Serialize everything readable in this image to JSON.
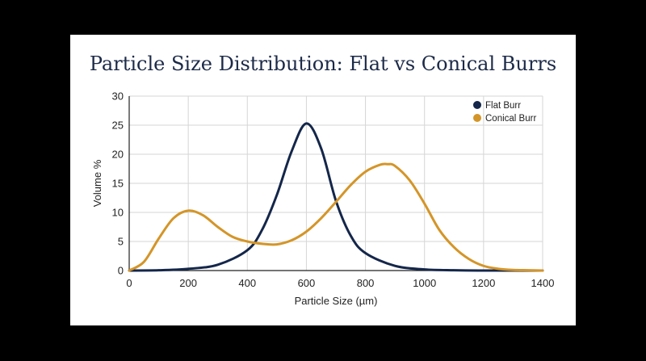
{
  "chart_data": {
    "type": "line",
    "title": "Particle Size Distribution: Flat vs Conical Burrs",
    "xlabel": "Particle Size (µm)",
    "ylabel": "Volume %",
    "xlim": [
      0,
      1400
    ],
    "ylim": [
      0,
      30
    ],
    "xticks": [
      0,
      200,
      400,
      600,
      800,
      1000,
      1200,
      1400
    ],
    "yticks": [
      0,
      5,
      10,
      15,
      20,
      25,
      30
    ],
    "grid": true,
    "legend_position": "top-right",
    "series": [
      {
        "name": "Flat Burr",
        "color": "#14264a",
        "x": [
          0,
          100,
          200,
          300,
          400,
          450,
          500,
          550,
          600,
          650,
          700,
          750,
          800,
          900,
          1000,
          1100,
          1200,
          1300,
          1400
        ],
        "y": [
          0,
          0.05,
          0.3,
          1.0,
          3.5,
          7.0,
          13.0,
          20.5,
          25.3,
          21.0,
          12.0,
          6.0,
          3.0,
          0.8,
          0.2,
          0.05,
          0,
          0,
          0
        ]
      },
      {
        "name": "Conical Burr",
        "color": "#d49528",
        "x": [
          0,
          50,
          100,
          150,
          200,
          250,
          300,
          350,
          400,
          450,
          500,
          550,
          600,
          650,
          700,
          750,
          800,
          850,
          875,
          900,
          950,
          1000,
          1050,
          1100,
          1150,
          1200,
          1250,
          1300,
          1350,
          1400
        ],
        "y": [
          0,
          1.5,
          5.5,
          9.0,
          10.3,
          9.5,
          7.5,
          5.8,
          5.0,
          4.6,
          4.5,
          5.2,
          6.7,
          9.0,
          11.8,
          14.7,
          17.0,
          18.2,
          18.3,
          18.0,
          15.5,
          11.5,
          7.0,
          4.0,
          2.0,
          0.8,
          0.3,
          0.1,
          0.05,
          0
        ]
      }
    ]
  }
}
